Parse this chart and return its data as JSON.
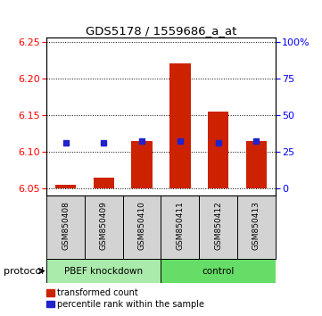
{
  "title": "GDS5178 / 1559686_a_at",
  "samples": [
    "GSM850408",
    "GSM850409",
    "GSM850410",
    "GSM850411",
    "GSM850412",
    "GSM850413"
  ],
  "groups": [
    "PBEF knockdown",
    "PBEF knockdown",
    "PBEF knockdown",
    "control",
    "control",
    "control"
  ],
  "red_values": [
    6.055,
    6.065,
    6.115,
    6.22,
    6.155,
    6.115
  ],
  "blue_values": [
    6.112,
    6.112,
    6.115,
    6.115,
    6.112,
    6.115
  ],
  "red_base": 6.05,
  "ylim_min": 6.04,
  "ylim_max": 6.255,
  "y_left_ticks": [
    6.05,
    6.1,
    6.15,
    6.2,
    6.25
  ],
  "y_right_ticks": [
    "0",
    "25",
    "50",
    "75",
    "100%"
  ],
  "y_right_tick_vals": [
    6.05,
    6.1,
    6.15,
    6.2,
    6.25
  ],
  "group1_color": "#aaeaaa",
  "group2_color": "#66dd66",
  "sample_bg_color": "#d3d3d3",
  "red_color": "#cc2200",
  "blue_color": "#2222cc",
  "group1_label": "PBEF knockdown",
  "group2_label": "control",
  "protocol_label": "protocol",
  "legend_red": "transformed count",
  "legend_blue": "percentile rank within the sample"
}
